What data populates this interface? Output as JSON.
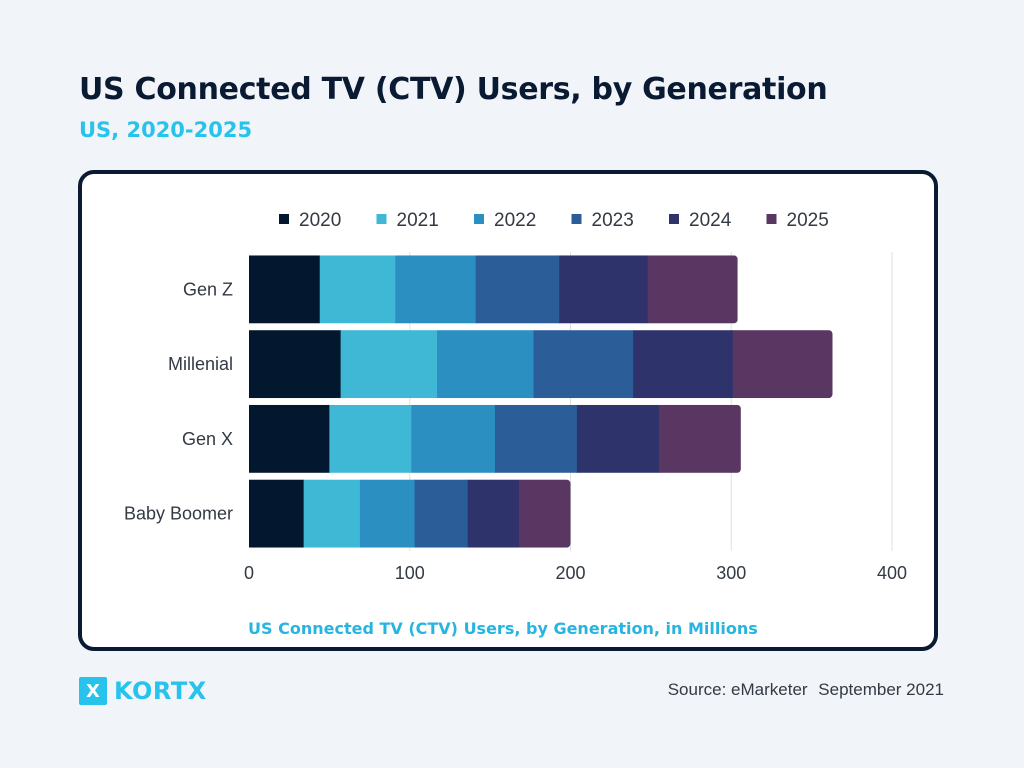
{
  "header": {
    "title": "US Connected TV (CTV) Users, by Generation",
    "subtitle": "US, 2020-2025"
  },
  "chart_data": {
    "type": "bar",
    "orientation": "horizontal",
    "stacked": true,
    "categories": [
      "Gen Z",
      "Millenial",
      "Gen X",
      "Baby Boomer"
    ],
    "series": [
      {
        "name": "2020",
        "color": "#03182f",
        "values": [
          44,
          57,
          50,
          34
        ]
      },
      {
        "name": "2021",
        "color": "#3fb8d6",
        "values": [
          47,
          60,
          51,
          35
        ]
      },
      {
        "name": "2022",
        "color": "#2c8fc1",
        "values": [
          50,
          60,
          52,
          34
        ]
      },
      {
        "name": "2023",
        "color": "#2b5d98",
        "values": [
          52,
          62,
          51,
          33
        ]
      },
      {
        "name": "2024",
        "color": "#2e336b",
        "values": [
          55,
          62,
          51,
          32
        ]
      },
      {
        "name": "2025",
        "color": "#5a3763",
        "values": [
          56,
          62,
          51,
          32
        ]
      }
    ],
    "xlim": [
      0,
      400
    ],
    "xticks": [
      0,
      100,
      200,
      300,
      400
    ],
    "grid": true,
    "legend_position": "top",
    "xlabel": "US Connected TV (CTV) Users, by Generation, in Millions"
  },
  "footer": {
    "brand_mark": "X",
    "brand_name": "KORTX",
    "source_label": "Source: eMarketer",
    "source_date": "September 2021"
  }
}
